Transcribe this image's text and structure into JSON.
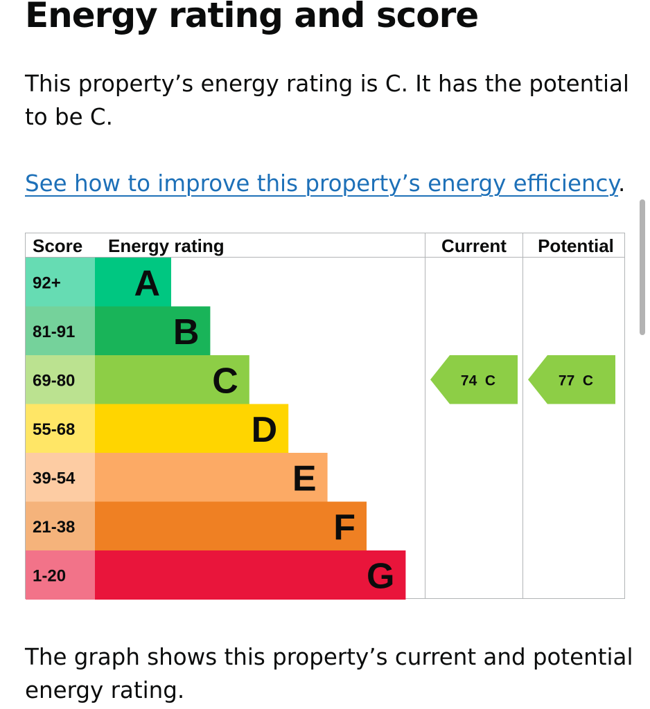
{
  "heading": "Energy rating and score",
  "intro": "This property’s energy rating is C. It has the potential to be C.",
  "improve_link": "See how to improve this property’s energy efficiency",
  "improve_suffix": ".",
  "graph_description": "The graph shows this property’s current and potential energy rating.",
  "table_headers": {
    "score": "Score",
    "rating": "Energy rating",
    "current": "Current",
    "potential": "Potential"
  },
  "bands": [
    {
      "letter": "A",
      "score": "92+",
      "color": "#00c781",
      "score_bg": "#66dcb3"
    },
    {
      "letter": "B",
      "score": "81-91",
      "color": "#19b459",
      "score_bg": "#75d29b"
    },
    {
      "letter": "C",
      "score": "69-80",
      "color": "#8dce46",
      "score_bg": "#bbe290"
    },
    {
      "letter": "D",
      "score": "55-68",
      "color": "#ffd500",
      "score_bg": "#ffe666"
    },
    {
      "letter": "E",
      "score": "39-54",
      "color": "#fcaa65",
      "score_bg": "#fdcca3"
    },
    {
      "letter": "F",
      "score": "21-38",
      "color": "#ef8023",
      "score_bg": "#f5b37b"
    },
    {
      "letter": "G",
      "score": "1-20",
      "color": "#e9153b",
      "score_bg": "#f27389"
    }
  ],
  "current": {
    "score": 74,
    "band": "C",
    "label": "74  C",
    "color": "#8dce46"
  },
  "potential": {
    "score": 77,
    "band": "C",
    "label": "77  C",
    "color": "#8dce46"
  }
}
